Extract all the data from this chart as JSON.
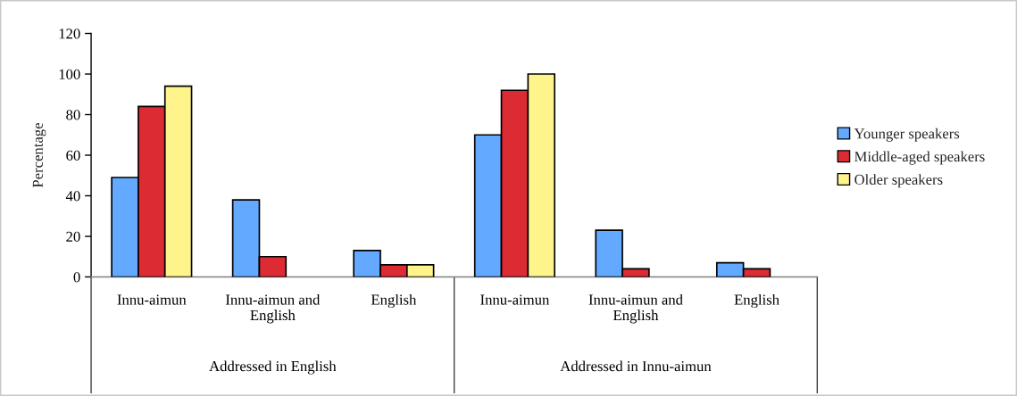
{
  "chart_data": {
    "type": "bar",
    "categories": [
      "Innu-aimun",
      "Innu-aimun and English",
      "English",
      "Innu-aimun",
      "Innu-aimun and English",
      "English"
    ],
    "series": [
      {
        "name": "Younger speakers",
        "color": "#63a9ff",
        "values": [
          49,
          38,
          13,
          70,
          23,
          7
        ]
      },
      {
        "name": "Middle-aged speakers",
        "color": "#dc2b33",
        "values": [
          84,
          10,
          6,
          92,
          4,
          4
        ]
      },
      {
        "name": "Older speakers",
        "color": "#fff48c",
        "values": [
          94,
          null,
          6,
          100,
          null,
          null
        ]
      }
    ],
    "ylabel": "Percentage",
    "ylim": [
      0,
      120
    ],
    "yticks": [
      0,
      20,
      40,
      60,
      80,
      100,
      120
    ],
    "annotations": [
      "Addressed in English",
      "Addressed in Innu-aimun"
    ],
    "legend": "right"
  }
}
